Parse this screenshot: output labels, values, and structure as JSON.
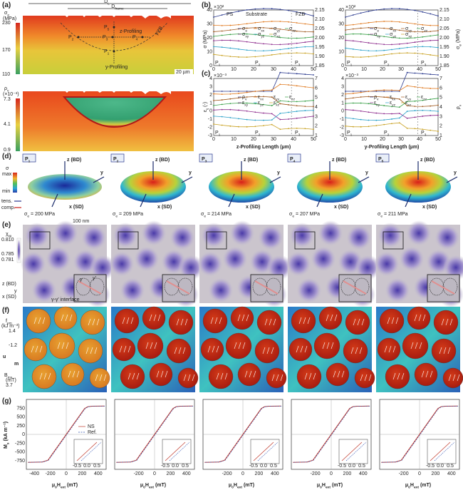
{
  "a": {
    "label": "(a)",
    "dl": [
      "D",
      "L"
    ],
    "dframe": [
      "D",
      "frame"
    ],
    "sigma": [
      "σ",
      "e"
    ],
    "sigma_unit": "(MPa)",
    "sigma_ticks": [
      "230",
      "170",
      "110"
    ],
    "points": [
      [
        "P",
        "2"
      ],
      [
        "P",
        "3"
      ],
      [
        "P",
        "4"
      ],
      [
        "P",
        "5"
      ],
      [
        "P",
        "1"
      ]
    ],
    "fzb": "FZB",
    "z_profiling": "z-Profiling",
    "y_profiling": "y-Profiling",
    "scale": "20 µm",
    "rho": [
      "ρ",
      "v"
    ],
    "rho_unit": "(×10⁻³)",
    "rho_ticks": [
      "7.3",
      "4.1",
      "0.9"
    ]
  },
  "b": {
    "label": "(b)",
    "ylabel": "σ (MPa)",
    "y2label": [
      "σ",
      "e",
      " (MPa)"
    ],
    "exp": "×10²",
    "yticks": [
      "40",
      "30",
      "20",
      "10",
      "0"
    ],
    "y2ticks": [
      "2.15",
      "2.10",
      "2.05",
      "2.00",
      "1.95",
      "1.90",
      "1.85"
    ],
    "legend": [
      [
        "σ",
        "e"
      ],
      [
        "σ",
        "xx"
      ],
      [
        "σ",
        "yy"
      ],
      [
        "σ",
        "zz"
      ],
      [
        "σ",
        "xy"
      ],
      [
        "σ",
        "yz"
      ],
      [
        "σ",
        "xz"
      ]
    ],
    "regions": [
      "PS",
      "Substrate",
      "FZB"
    ]
  },
  "c": {
    "label": "(c)",
    "ylabel": [
      "ε",
      "ij",
      " (-)"
    ],
    "exp": "×10⁻³",
    "yticks": [
      "4",
      "3",
      "2",
      "1",
      "0",
      "-1",
      "-2",
      "-3"
    ],
    "y2label": [
      "ρ",
      "v"
    ],
    "y2ticks": [
      "7",
      "6",
      "5",
      "4",
      "3",
      "2",
      "1"
    ],
    "legend": [
      [
        "ρ",
        "v"
      ],
      [
        "ε",
        "xx"
      ],
      [
        "ε",
        "yy"
      ],
      [
        "ε",
        "zz"
      ],
      [
        "ε",
        "xy"
      ],
      [
        "ε",
        "yz"
      ],
      [
        "ε",
        "xz"
      ]
    ]
  },
  "profile": {
    "xticks": [
      "0",
      "10",
      "20",
      "30",
      "40",
      "50"
    ],
    "xlabels": [
      "z-Profiling Length (µm)",
      "y-Profiling Length (µm)"
    ],
    "points": [
      [
        "P",
        "1"
      ],
      [
        "P",
        "2"
      ],
      [
        "P",
        "3"
      ]
    ]
  },
  "d": {
    "label": "(d)",
    "bar": "σ",
    "max": "max",
    "min": "min",
    "tens": "tens.",
    "comp": "comp.",
    "axis_z": "z (BD)",
    "axis_y": "y",
    "axis_x": "x (SD)",
    "scale": "100 nm",
    "panels": [
      {
        "tag": [
          "P",
          "1"
        ],
        "stress": [
          "σ",
          "e",
          " = 200 MPa"
        ]
      },
      {
        "tag": [
          "P",
          "2"
        ],
        "stress": [
          "σ",
          "e",
          " = 209 MPa"
        ]
      },
      {
        "tag": [
          "P",
          "3"
        ],
        "stress": [
          "σ",
          "e",
          " = 214 MPa"
        ]
      },
      {
        "tag": [
          "P",
          "4"
        ],
        "stress": [
          "σ",
          "e",
          " = 207 MPa"
        ]
      },
      {
        "tag": [
          "P",
          "5"
        ],
        "stress": [
          "σ",
          "e",
          " = 211 MPa"
        ]
      }
    ]
  },
  "e": {
    "label": "(e)",
    "chi": [
      "χ",
      "Ni"
    ],
    "ticks": [
      "0.810",
      "0.785",
      "0.781"
    ],
    "axes": [
      "z (BD)",
      "y",
      "x (SD)"
    ],
    "gamma": "γ",
    "gamma_p": "γ'",
    "interface": "γ-γ' interface"
  },
  "f": {
    "label": "(f)",
    "f": [
      "f",
      "em"
    ],
    "f_unit": "(kJ m⁻³)",
    "f_ticks": [
      "1.4",
      "-1.2"
    ],
    "u": "u",
    "m": "m",
    "b": [
      "B",
      "ms"
    ],
    "b_unit": "(mT)",
    "b_tick": "3.7"
  },
  "g": {
    "label": "(g)",
    "ylabel": [
      "M",
      "s",
      " (kA m⁻¹)"
    ],
    "yticks": [
      "750",
      "500",
      "250",
      "0",
      "-250",
      "-500",
      "-750"
    ],
    "xticks": [
      "-400",
      "-200",
      "0",
      "200",
      "400"
    ],
    "xlabel": [
      "μ",
      "0",
      "H",
      "ext",
      " (mT)"
    ],
    "legend": [
      "NS",
      "Ref."
    ],
    "inset_ticks": [
      "-0.5",
      "0.0",
      "0.5"
    ]
  }
}
